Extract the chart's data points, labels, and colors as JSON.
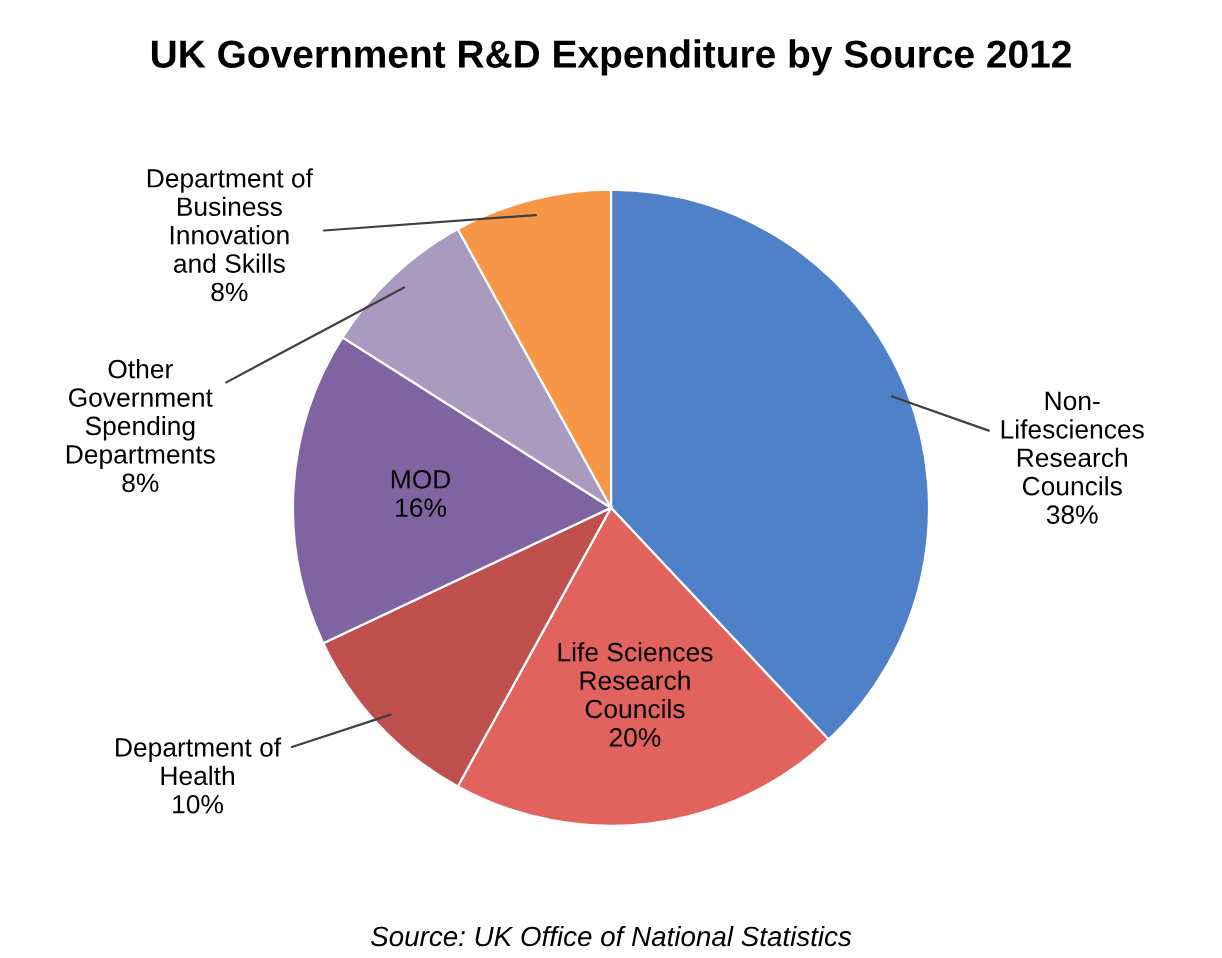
{
  "chart_data": {
    "type": "pie",
    "title": "UK Government R&D Expenditure by Source 2012",
    "categories": [
      "Non-Lifesciences Research Councils",
      "Life Sciences Research Councils",
      "Department of Health",
      "MOD",
      "Other Government Spending Departments",
      "Department of Business Innovation and Skills"
    ],
    "values": [
      38,
      20,
      10,
      16,
      8,
      8
    ],
    "colors": [
      "#4f81c9",
      "#e2625e",
      "#c0504d",
      "#8064a2",
      "#a99bbf",
      "#f79646"
    ],
    "value_labels": [
      "38%",
      "20%",
      "10%",
      "16%",
      "8%",
      "8%"
    ],
    "annotations": [
      "Source: UK Office of National Statistics"
    ]
  }
}
